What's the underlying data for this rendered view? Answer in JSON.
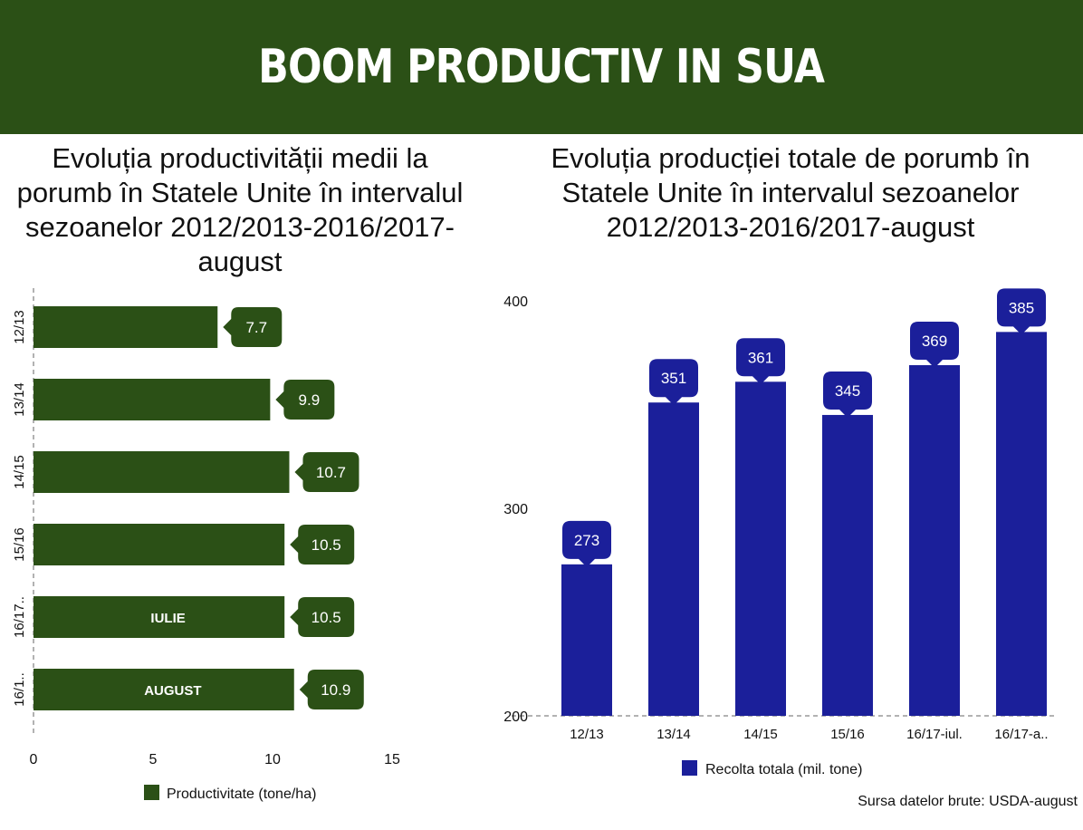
{
  "header": {
    "title": "BOOM PRODUCTIV IN SUA"
  },
  "colors": {
    "header_bg": "#2b5016",
    "left_bar": "#2b5016",
    "right_bar": "#1b1f9a"
  },
  "source_note": "Sursa datelor brute: USDA-august",
  "chart_data": [
    {
      "type": "bar",
      "orientation": "horizontal",
      "title": "Evoluția productivității medii la porumb în Statele Unite în intervalul sezoanelor 2012/2013-2016/2017-august",
      "categories": [
        "12/13",
        "13/14",
        "14/15",
        "15/16",
        "16/17..",
        "16/1.."
      ],
      "series": [
        {
          "name": "Productivitate (tone/ha)",
          "values": [
            7.7,
            9.9,
            10.7,
            10.5,
            10.5,
            10.9
          ]
        }
      ],
      "data_labels": [
        "7.7",
        "9.9",
        "10.7",
        "10.5",
        "10.5",
        "10.9"
      ],
      "bar_annotations": [
        "",
        "",
        "",
        "",
        "IULIE",
        "AUGUST"
      ],
      "xlim": [
        0,
        15
      ],
      "xticks": [
        "0",
        "5",
        "10",
        "15"
      ],
      "legend": "bottom",
      "grid": false
    },
    {
      "type": "bar",
      "title": "Evoluția producției totale de porumb în Statele Unite în intervalul sezoanelor 2012/2013-2016/2017-august",
      "categories": [
        "12/13",
        "13/14",
        "14/15",
        "15/16",
        "16/17-iul.",
        "16/17-a.."
      ],
      "series": [
        {
          "name": "Recolta totala (mil. tone)",
          "values": [
            273,
            351,
            361,
            345,
            369,
            385
          ]
        }
      ],
      "data_labels": [
        "273",
        "351",
        "361",
        "345",
        "369",
        "385"
      ],
      "ylim": [
        200,
        400
      ],
      "yticks": [
        "200",
        "300",
        "400"
      ],
      "legend": "bottom",
      "grid": false
    }
  ]
}
